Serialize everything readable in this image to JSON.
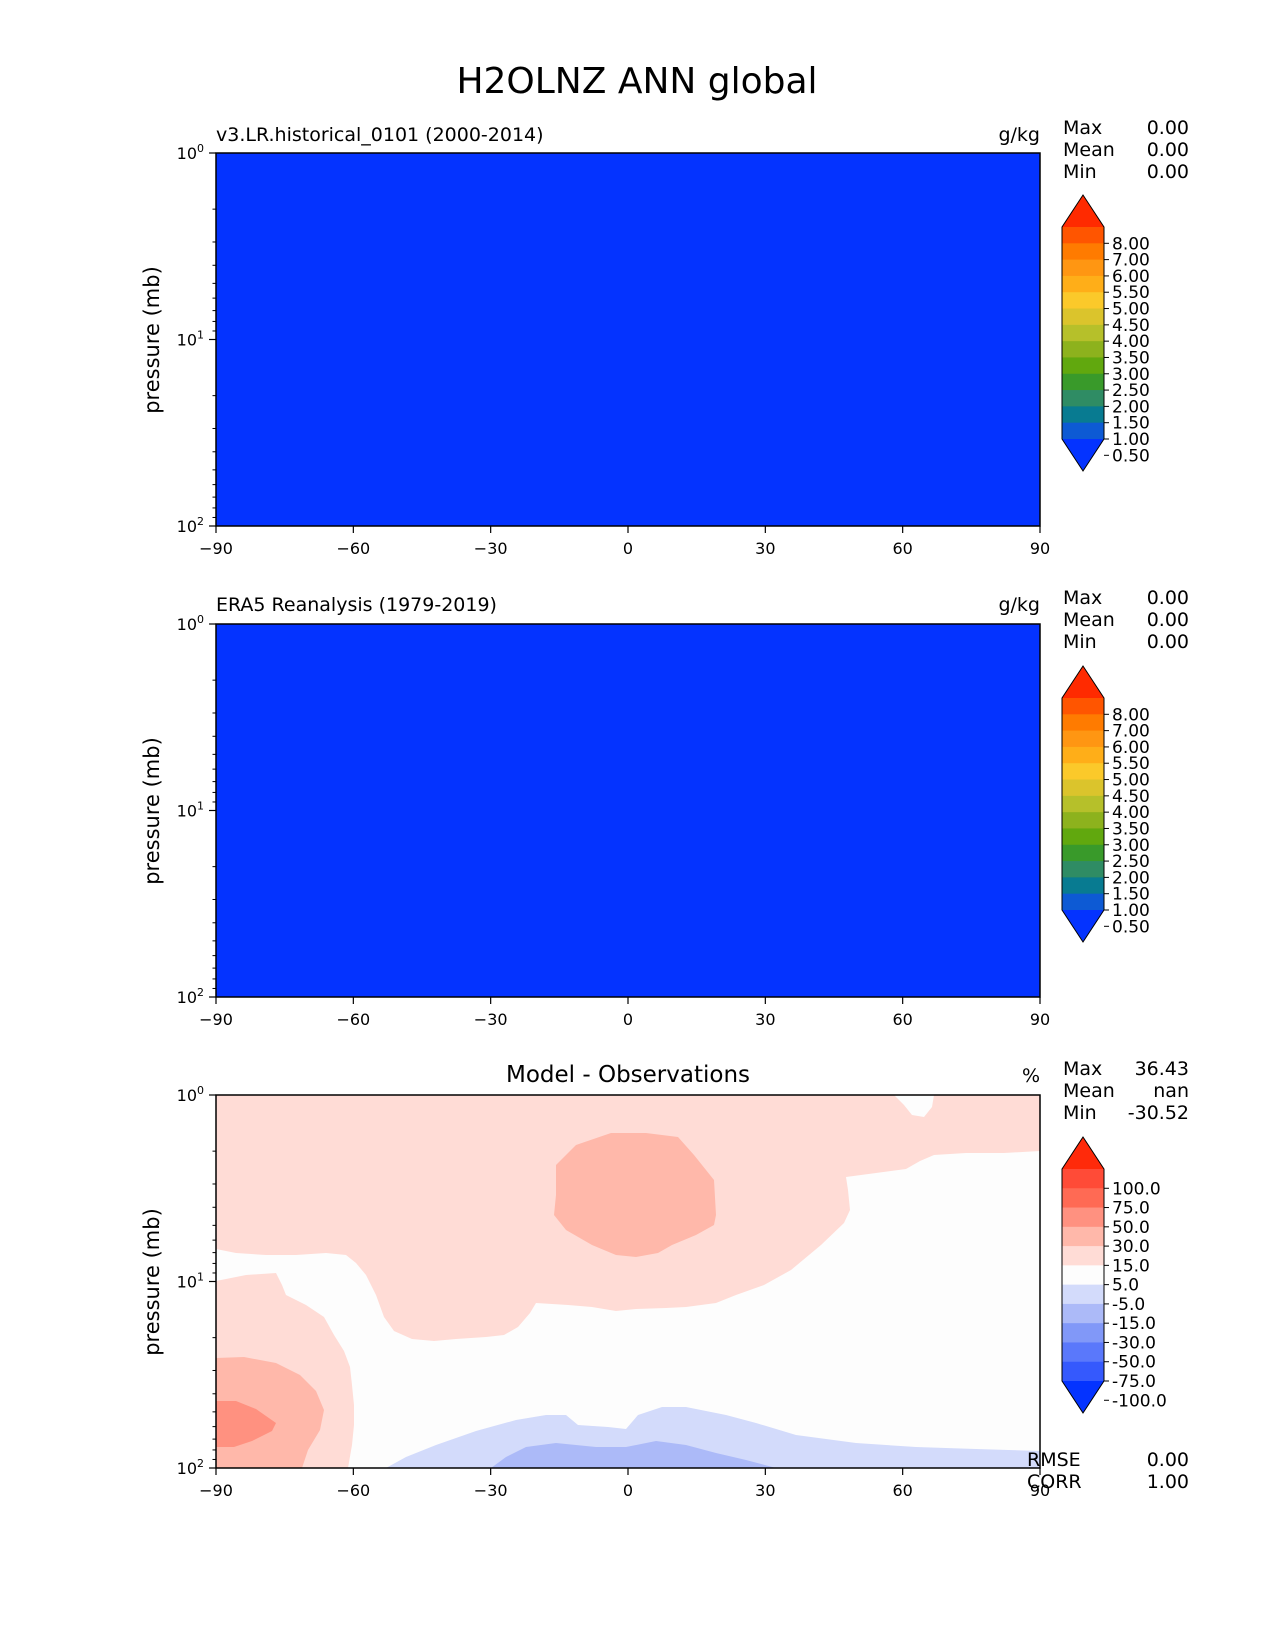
{
  "figure_title": "H2OLNZ ANN global",
  "chart_data": [
    {
      "type": "contour",
      "panel_title": "v3.LR.historical_0101 (2000-2014)",
      "units": "g/kg",
      "ylabel": "pressure (mb)",
      "xlim": [
        -90,
        90
      ],
      "ylim": [
        100,
        1
      ],
      "yscale": "log",
      "x_ticks": [
        "−90",
        "−60",
        "−30",
        "0",
        "30",
        "60",
        "90"
      ],
      "y_ticks": [
        "10^0",
        "10^1",
        "10^2"
      ],
      "stats": {
        "labels": [
          "Max",
          "Mean",
          "Min"
        ],
        "values": [
          "0.00",
          "0.00",
          "0.00"
        ]
      },
      "field": "uniform value below 0.50 g/kg (lowest colorbar bin) everywhere",
      "fill_color": "#0433ff",
      "colorbar": {
        "ticks": [
          "8.00",
          "7.00",
          "6.00",
          "5.50",
          "5.00",
          "4.50",
          "4.00",
          "3.50",
          "3.00",
          "2.50",
          "2.00",
          "1.50",
          "1.00",
          "0.50"
        ],
        "colors": [
          "#ff2a00",
          "#ff5500",
          "#ff7b00",
          "#ff9612",
          "#ffae18",
          "#fbc92a",
          "#dbc42c",
          "#b6c02a",
          "#8db21d",
          "#61a80e",
          "#399a2a",
          "#2f8c64",
          "#087b91",
          "#0d5ad4",
          "#0433ff"
        ]
      }
    },
    {
      "type": "contour",
      "panel_title": "ERA5 Reanalysis (1979-2019)",
      "units": "g/kg",
      "ylabel": "pressure (mb)",
      "xlim": [
        -90,
        90
      ],
      "ylim": [
        100,
        1
      ],
      "yscale": "log",
      "x_ticks": [
        "−90",
        "−60",
        "−30",
        "0",
        "30",
        "60",
        "90"
      ],
      "y_ticks": [
        "10^0",
        "10^1",
        "10^2"
      ],
      "stats": {
        "labels": [
          "Max",
          "Mean",
          "Min"
        ],
        "values": [
          "0.00",
          "0.00",
          "0.00"
        ]
      },
      "field": "uniform value below 0.50 g/kg (lowest colorbar bin) everywhere",
      "fill_color": "#0433ff",
      "colorbar": {
        "ticks": [
          "8.00",
          "7.00",
          "6.00",
          "5.50",
          "5.00",
          "4.50",
          "4.00",
          "3.50",
          "3.00",
          "2.50",
          "2.00",
          "1.50",
          "1.00",
          "0.50"
        ],
        "colors": [
          "#ff2a00",
          "#ff5500",
          "#ff7b00",
          "#ff9612",
          "#ffae18",
          "#fbc92a",
          "#dbc42c",
          "#b6c02a",
          "#8db21d",
          "#61a80e",
          "#399a2a",
          "#2f8c64",
          "#087b91",
          "#0d5ad4",
          "#0433ff"
        ]
      }
    },
    {
      "type": "contour",
      "panel_title": "Model - Observations",
      "units": "%",
      "ylabel": "pressure (mb)",
      "xlim": [
        -90,
        90
      ],
      "ylim": [
        100,
        1
      ],
      "yscale": "log",
      "x_ticks": [
        "−90",
        "−60",
        "−30",
        "0",
        "30",
        "60",
        "90"
      ],
      "y_ticks": [
        "10^0",
        "10^1",
        "10^2"
      ],
      "stats": {
        "labels": [
          "Max",
          "Mean",
          "Min"
        ],
        "values": [
          "36.43",
          "nan",
          "-30.52"
        ]
      },
      "extra_stats": {
        "labels": [
          "RMSE",
          "CORR"
        ],
        "values": [
          "0.00",
          "1.00"
        ]
      },
      "colorbar": {
        "ticks": [
          "100.0",
          "75.0",
          "50.0",
          "30.0",
          "15.0",
          "5.0",
          "-5.0",
          "-15.0",
          "-30.0",
          "-50.0",
          "-75.0",
          "-100.0"
        ],
        "colors": [
          "#ff2a0a",
          "#ff4b37",
          "#ff6a54",
          "#ff9180",
          "#ffb8aa",
          "#ffdcd6",
          "#fdfdfd",
          "#d3dbfb",
          "#acbaf8",
          "#8198f8",
          "#5a78fb",
          "#3559fd",
          "#0433ff"
        ]
      },
      "regions": [
        {
          "level": "5 to 15",
          "color": "#ffdcd6",
          "description": "upper levels across most latitudes, southern high latitudes in lower levels"
        },
        {
          "level": "15 to 30",
          "color": "#ffb8aa",
          "description": "near 0° around 3 mb; southern high latitudes near 50–80 mb"
        },
        {
          "level": "30 to 50",
          "color": "#ff9180",
          "description": "core near -90° to -75°, about 60 mb"
        },
        {
          "level": "-15 to -5",
          "color": "#d3dbfb",
          "description": "lower levels from -50° to 90°, 50–100 mb"
        },
        {
          "level": "-30 to -15",
          "color": "#acbaf8",
          "description": "near -20° to 40°, 80–100 mb"
        }
      ]
    }
  ]
}
